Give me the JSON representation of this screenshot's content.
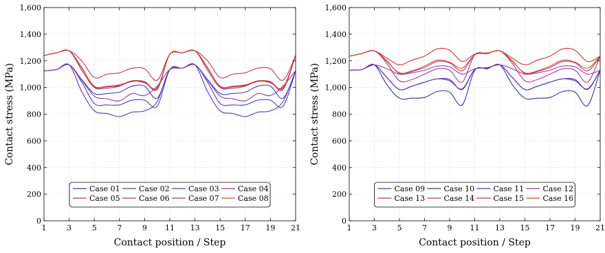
{
  "chart_data": [
    {
      "type": "line",
      "xlabel": "Contact position / Step",
      "ylabel": "Contact stress (MPa)",
      "xlim": [
        1,
        21
      ],
      "ylim": [
        0,
        1600
      ],
      "xticks": [
        "1",
        "3",
        "5",
        "7",
        "9",
        "11",
        "13",
        "15",
        "17",
        "19",
        "21"
      ],
      "yticks": [
        "0",
        "200",
        "400",
        "600",
        "800",
        "1,000",
        "1,200",
        "1,400",
        "1,600"
      ],
      "grid": true,
      "legend_position": "bottom-center",
      "legend_columns": 4,
      "x": [
        1,
        2,
        3,
        4,
        5,
        6,
        7,
        8,
        9,
        10,
        11,
        12,
        13,
        14,
        15,
        16,
        17,
        18,
        19,
        20,
        21
      ],
      "series": [
        {
          "name": "Case 01",
          "color": "#3b3fa6",
          "values": [
            1125,
            1135,
            1170,
            1060,
            955,
            955,
            965,
            1010,
            1010,
            920,
            1135,
            1145,
            1170,
            1060,
            955,
            955,
            965,
            1010,
            1010,
            920,
            1125
          ]
        },
        {
          "name": "Case 02",
          "color": "#4a3fb0",
          "values": [
            1125,
            1135,
            1170,
            1040,
            880,
            870,
            870,
            905,
            905,
            860,
            1135,
            1145,
            1170,
            1040,
            880,
            870,
            870,
            905,
            905,
            860,
            1125
          ]
        },
        {
          "name": "Case 03",
          "color": "#5a2fb3",
          "values": [
            1125,
            1135,
            1170,
            970,
            825,
            805,
            782,
            815,
            825,
            895,
            1135,
            1145,
            1170,
            970,
            825,
            805,
            782,
            815,
            825,
            895,
            1125
          ]
        },
        {
          "name": "Case 04",
          "color": "#8a3aa8",
          "values": [
            1125,
            1135,
            1170,
            1055,
            935,
            915,
            900,
            955,
            940,
            1010,
            1135,
            1145,
            1170,
            1055,
            935,
            915,
            900,
            955,
            940,
            1010,
            1125
          ]
        },
        {
          "name": "Case 05",
          "color": "#a63a85",
          "values": [
            1240,
            1260,
            1275,
            1150,
            1005,
            1005,
            1015,
            1045,
            1040,
            985,
            1250,
            1260,
            1275,
            1150,
            1005,
            1005,
            1015,
            1045,
            1040,
            985,
            1240
          ]
        },
        {
          "name": "Case 06",
          "color": "#b33a6a",
          "values": [
            1240,
            1260,
            1275,
            1130,
            1000,
            995,
            1010,
            1050,
            1035,
            1000,
            1250,
            1260,
            1275,
            1130,
            1000,
            995,
            1010,
            1050,
            1035,
            1000,
            1240
          ]
        },
        {
          "name": "Case 07",
          "color": "#c23a4f",
          "values": [
            1240,
            1260,
            1275,
            1200,
            1075,
            1100,
            1110,
            1145,
            1140,
            1055,
            1250,
            1260,
            1275,
            1200,
            1075,
            1100,
            1110,
            1145,
            1140,
            1055,
            1240
          ]
        },
        {
          "name": "Case 08",
          "color": "#d04a2e",
          "values": [
            1240,
            1260,
            1275,
            1145,
            1010,
            1010,
            1020,
            1050,
            1045,
            990,
            1250,
            1260,
            1275,
            1145,
            1010,
            1010,
            1020,
            1050,
            1045,
            990,
            1240
          ]
        }
      ]
    },
    {
      "type": "line",
      "xlabel": "Contact position / Step",
      "ylabel": "Contact stress (MPa)",
      "xlim": [
        1,
        21
      ],
      "ylim": [
        0,
        1600
      ],
      "xticks": [
        "1",
        "3",
        "5",
        "7",
        "9",
        "11",
        "13",
        "15",
        "17",
        "19",
        "21"
      ],
      "yticks": [
        "0",
        "200",
        "400",
        "600",
        "800",
        "1,000",
        "1,200",
        "1,400",
        "1,600"
      ],
      "grid": true,
      "legend_position": "bottom-center",
      "legend_columns": 4,
      "x": [
        1,
        2,
        3,
        4,
        5,
        6,
        7,
        8,
        9,
        10,
        11,
        12,
        13,
        14,
        15,
        16,
        17,
        18,
        19,
        20,
        21
      ],
      "series": [
        {
          "name": "Case 09",
          "color": "#3b3fa6",
          "values": [
            1130,
            1135,
            1170,
            1075,
            985,
            1010,
            1040,
            1065,
            1050,
            990,
            1135,
            1145,
            1170,
            1075,
            985,
            1010,
            1040,
            1065,
            1050,
            990,
            1130
          ]
        },
        {
          "name": "Case 10",
          "color": "#33338f",
          "values": [
            1130,
            1135,
            1170,
            1020,
            920,
            920,
            925,
            970,
            965,
            870,
            1130,
            1140,
            1170,
            1020,
            920,
            920,
            925,
            970,
            965,
            865,
            1130
          ]
        },
        {
          "name": "Case 11",
          "color": "#5a2fb3",
          "values": [
            1130,
            1135,
            1170,
            1075,
            985,
            1010,
            1040,
            1065,
            1060,
            985,
            1135,
            1145,
            1170,
            1075,
            985,
            1010,
            1040,
            1065,
            1060,
            985,
            1130
          ]
        },
        {
          "name": "Case 12",
          "color": "#9a3aa8",
          "values": [
            1130,
            1135,
            1170,
            1140,
            1100,
            1110,
            1130,
            1160,
            1155,
            1100,
            1140,
            1150,
            1170,
            1140,
            1100,
            1110,
            1130,
            1160,
            1155,
            1100,
            1130
          ]
        },
        {
          "name": "Case 13",
          "color": "#a63a85",
          "values": [
            1235,
            1255,
            1275,
            1180,
            1050,
            1060,
            1100,
            1140,
            1130,
            1040,
            1245,
            1255,
            1275,
            1180,
            1050,
            1060,
            1100,
            1140,
            1130,
            1040,
            1235
          ]
        },
        {
          "name": "Case 14",
          "color": "#b33a6a",
          "values": [
            1235,
            1255,
            1275,
            1200,
            1105,
            1120,
            1150,
            1195,
            1185,
            1125,
            1245,
            1255,
            1275,
            1200,
            1105,
            1120,
            1150,
            1195,
            1185,
            1125,
            1235
          ]
        },
        {
          "name": "Case 15",
          "color": "#c9343c",
          "values": [
            1235,
            1255,
            1275,
            1220,
            1170,
            1205,
            1235,
            1290,
            1280,
            1195,
            1250,
            1260,
            1275,
            1220,
            1170,
            1205,
            1235,
            1290,
            1280,
            1195,
            1235
          ]
        },
        {
          "name": "Case 16",
          "color": "#d04a2e",
          "values": [
            1235,
            1255,
            1275,
            1195,
            1110,
            1125,
            1160,
            1205,
            1190,
            1145,
            1245,
            1255,
            1275,
            1195,
            1110,
            1125,
            1160,
            1205,
            1190,
            1145,
            1235
          ]
        }
      ]
    }
  ]
}
